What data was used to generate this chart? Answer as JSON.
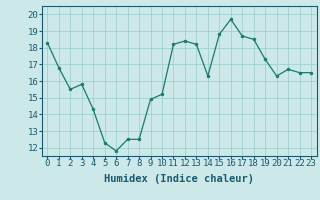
{
  "x": [
    0,
    1,
    2,
    3,
    4,
    5,
    6,
    7,
    8,
    9,
    10,
    11,
    12,
    13,
    14,
    15,
    16,
    17,
    18,
    19,
    20,
    21,
    22,
    23
  ],
  "y": [
    18.3,
    16.8,
    15.5,
    15.8,
    14.3,
    12.3,
    11.8,
    12.5,
    12.5,
    14.9,
    15.2,
    18.2,
    18.4,
    18.2,
    16.3,
    18.8,
    19.7,
    18.7,
    18.5,
    17.3,
    16.3,
    16.7,
    16.5,
    16.5
  ],
  "xlim": [
    -0.5,
    23.5
  ],
  "ylim": [
    11.5,
    20.5
  ],
  "yticks": [
    12,
    13,
    14,
    15,
    16,
    17,
    18,
    19,
    20
  ],
  "xticks": [
    0,
    1,
    2,
    3,
    4,
    5,
    6,
    7,
    8,
    9,
    10,
    11,
    12,
    13,
    14,
    15,
    16,
    17,
    18,
    19,
    20,
    21,
    22,
    23
  ],
  "xlabel": "Humidex (Indice chaleur)",
  "line_color": "#1a7a6e",
  "marker_color": "#1a7a6e",
  "bg_color": "#cce8e8",
  "grid_color": "#99cccc",
  "tick_color": "#1a5a6e",
  "label_fontsize": 6.5,
  "axis_fontsize": 7.5
}
